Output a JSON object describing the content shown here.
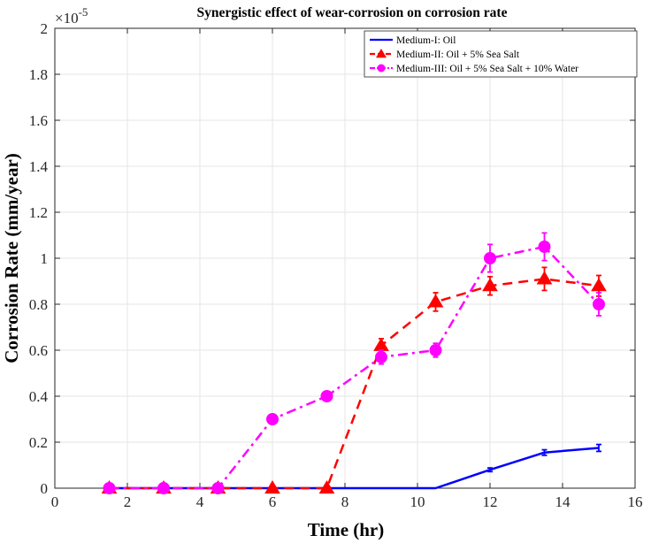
{
  "chart_data": {
    "type": "line",
    "title": "Synergistic effect of wear-corrosion on corrosion rate",
    "xlabel": "Time (hr)",
    "ylabel": "Corrosion Rate (mm/year)",
    "y_multiplier_label": "×10",
    "y_multiplier_exponent": "-5",
    "xlim": [
      0,
      16
    ],
    "ylim": [
      0,
      2
    ],
    "x_ticks": [
      0,
      2,
      4,
      6,
      8,
      10,
      12,
      14,
      16
    ],
    "y_ticks": [
      0,
      0.2,
      0.4,
      0.6,
      0.8,
      1,
      1.2,
      1.4,
      1.6,
      1.8,
      2
    ],
    "x_tick_labels": [
      "0",
      "2",
      "4",
      "6",
      "8",
      "10",
      "12",
      "14",
      "16"
    ],
    "y_tick_labels": [
      "0",
      "0.2",
      "0.4",
      "0.6",
      "0.8",
      "1",
      "1.2",
      "1.4",
      "1.6",
      "1.8",
      "2"
    ],
    "grid": true,
    "legend_position": "top-right",
    "series": [
      {
        "name": "Medium-I: Oil",
        "color": "#0000ff",
        "line_style": "solid",
        "marker": "none",
        "x": [
          1.5,
          3,
          4.5,
          6,
          7.5,
          9,
          10.5,
          12,
          13.5,
          15
        ],
        "y": [
          0,
          0,
          0,
          0,
          0,
          0,
          0,
          0.08,
          0.155,
          0.175
        ],
        "err": [
          0,
          0,
          0,
          0,
          0,
          0,
          0,
          0.008,
          0.012,
          0.015
        ]
      },
      {
        "name": "Medium-II: Oil + 5% Sea Salt",
        "color": "#ff0000",
        "line_style": "dashed",
        "marker": "triangle",
        "x": [
          1.5,
          3,
          4.5,
          6,
          7.5,
          9,
          10.5,
          12,
          13.5,
          15
        ],
        "y": [
          0,
          0,
          0,
          0,
          0,
          0.62,
          0.81,
          0.88,
          0.91,
          0.88
        ],
        "err": [
          0,
          0,
          0,
          0,
          0,
          0.03,
          0.04,
          0.04,
          0.05,
          0.045
        ]
      },
      {
        "name": "Medium-III: Oil + 5% Sea Salt + 10% Water",
        "color": "#ff00ff",
        "line_style": "dashdot",
        "marker": "circle",
        "x": [
          1.5,
          3,
          4.5,
          6,
          7.5,
          9,
          10.5,
          12,
          13.5,
          15
        ],
        "y": [
          0,
          0,
          0,
          0.3,
          0.4,
          0.57,
          0.6,
          1.0,
          1.05,
          0.8
        ],
        "err": [
          0,
          0,
          0,
          0,
          0,
          0.03,
          0.03,
          0.06,
          0.06,
          0.05
        ]
      }
    ]
  }
}
